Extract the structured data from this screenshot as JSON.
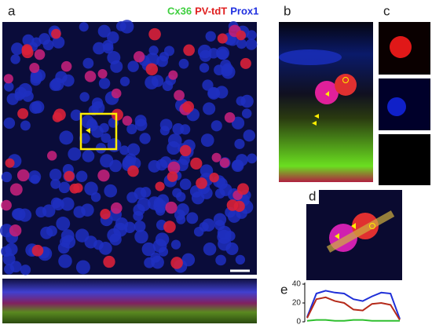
{
  "labels": {
    "a": "a",
    "b": "b",
    "c": "c",
    "d": "d",
    "e": "e"
  },
  "legend": [
    {
      "text": "Cx36",
      "color": "#3fcf3f"
    },
    {
      "text": "PV-tdT",
      "color": "#e02020"
    },
    {
      "text": "Prox1",
      "color": "#2030e0"
    }
  ],
  "panel_e": {
    "type": "line",
    "ylim": [
      0,
      40
    ],
    "yticks": [
      0,
      20,
      40
    ],
    "series": [
      {
        "name": "Prox1",
        "color": "#1f2fd8",
        "values": [
          5,
          30,
          33,
          31,
          30,
          24,
          22,
          27,
          31,
          30,
          3
        ]
      },
      {
        "name": "PV-tdT",
        "color": "#b52a1a",
        "values": [
          4,
          24,
          26,
          22,
          20,
          13,
          12,
          19,
          20,
          18,
          2
        ]
      },
      {
        "name": "Cx36",
        "color": "#2fbf2f",
        "values": [
          1,
          2,
          2,
          1,
          1,
          2,
          2,
          1,
          1,
          1,
          1
        ]
      }
    ]
  }
}
